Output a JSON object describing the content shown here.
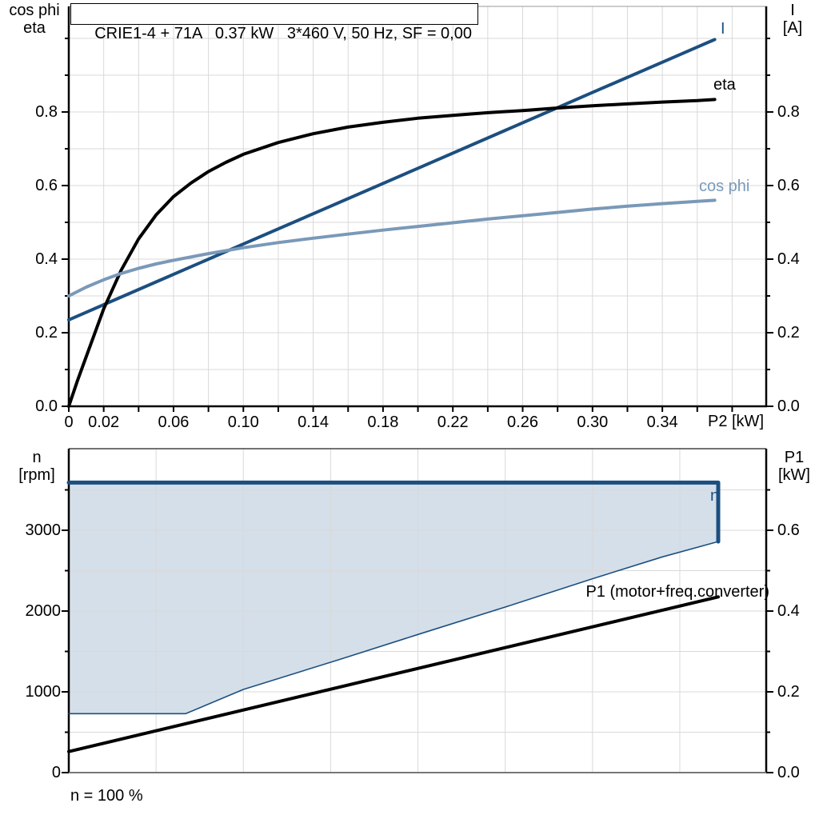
{
  "colors": {
    "dark_blue": "#1c4f80",
    "light_blue": "#7a99b8",
    "black": "#000000",
    "fill_blue": "#d4dfe9",
    "grid": "#d9d9d9"
  },
  "chart_data": [
    {
      "type": "line",
      "title": "CRIE1-4 + 71A   0.37 kW   3*460 V, 50 Hz, SF = 0,00",
      "xlabel": "P2 [kW]",
      "ylabel_left": [
        "cos phi",
        "eta"
      ],
      "ylabel_right": [
        "I",
        "[A]"
      ],
      "xlim": [
        0,
        0.3995
      ],
      "ylim": [
        0,
        1.087
      ],
      "grid": true,
      "x_minor_step": 0.02,
      "y_minor_step": 0.1,
      "x_tick_labels": [
        {
          "v": 0,
          "t": "0"
        },
        {
          "v": 0.02,
          "t": "0.02"
        },
        {
          "v": 0.06,
          "t": "0.06"
        },
        {
          "v": 0.1,
          "t": "0.10"
        },
        {
          "v": 0.14,
          "t": "0.14"
        },
        {
          "v": 0.18,
          "t": "0.18"
        },
        {
          "v": 0.22,
          "t": "0.22"
        },
        {
          "v": 0.26,
          "t": "0.26"
        },
        {
          "v": 0.3,
          "t": "0.30"
        },
        {
          "v": 0.34,
          "t": "0.34"
        }
      ],
      "y_tick_labels": [
        {
          "v": 0,
          "t": "0.0"
        },
        {
          "v": 0.2,
          "t": "0.2"
        },
        {
          "v": 0.4,
          "t": "0.4"
        },
        {
          "v": 0.6,
          "t": "0.6"
        },
        {
          "v": 0.8,
          "t": "0.8"
        }
      ],
      "series": [
        {
          "name": "I",
          "label": "I",
          "color": "dark_blue",
          "width": 4,
          "points": [
            [
              0,
              0.235
            ],
            [
              0.05,
              0.338
            ],
            [
              0.1,
              0.441
            ],
            [
              0.15,
              0.544
            ],
            [
              0.2,
              0.647
            ],
            [
              0.25,
              0.75
            ],
            [
              0.3,
              0.853
            ],
            [
              0.35,
              0.956
            ],
            [
              0.37,
              0.997
            ]
          ]
        },
        {
          "name": "eta",
          "label": "eta",
          "color": "black",
          "width": 4,
          "points": [
            [
              0,
              0
            ],
            [
              0.005,
              0.07
            ],
            [
              0.01,
              0.135
            ],
            [
              0.02,
              0.265
            ],
            [
              0.03,
              0.37
            ],
            [
              0.04,
              0.455
            ],
            [
              0.05,
              0.52
            ],
            [
              0.06,
              0.57
            ],
            [
              0.07,
              0.607
            ],
            [
              0.08,
              0.638
            ],
            [
              0.09,
              0.663
            ],
            [
              0.1,
              0.685
            ],
            [
              0.12,
              0.717
            ],
            [
              0.14,
              0.741
            ],
            [
              0.16,
              0.759
            ],
            [
              0.18,
              0.772
            ],
            [
              0.2,
              0.783
            ],
            [
              0.22,
              0.791
            ],
            [
              0.24,
              0.798
            ],
            [
              0.26,
              0.804
            ],
            [
              0.28,
              0.811
            ],
            [
              0.3,
              0.817
            ],
            [
              0.32,
              0.822
            ],
            [
              0.34,
              0.827
            ],
            [
              0.36,
              0.831
            ],
            [
              0.37,
              0.834
            ]
          ]
        },
        {
          "name": "cos_phi",
          "label": "cos phi",
          "color": "light_blue",
          "width": 4,
          "points": [
            [
              0,
              0.3
            ],
            [
              0.01,
              0.324
            ],
            [
              0.02,
              0.344
            ],
            [
              0.03,
              0.361
            ],
            [
              0.04,
              0.375
            ],
            [
              0.05,
              0.387
            ],
            [
              0.06,
              0.397
            ],
            [
              0.08,
              0.415
            ],
            [
              0.1,
              0.431
            ],
            [
              0.12,
              0.445
            ],
            [
              0.14,
              0.457
            ],
            [
              0.16,
              0.468
            ],
            [
              0.18,
              0.479
            ],
            [
              0.2,
              0.489
            ],
            [
              0.22,
              0.499
            ],
            [
              0.24,
              0.509
            ],
            [
              0.26,
              0.518
            ],
            [
              0.28,
              0.527
            ],
            [
              0.3,
              0.536
            ],
            [
              0.32,
              0.544
            ],
            [
              0.34,
              0.551
            ],
            [
              0.36,
              0.557
            ],
            [
              0.37,
              0.56
            ]
          ]
        }
      ]
    },
    {
      "type": "area",
      "title": "",
      "xlabel": "",
      "ylabel_left": [
        "n",
        "[rpm]"
      ],
      "ylabel_right": [
        "P1",
        "[kW]"
      ],
      "footnote": "n = 100 %",
      "xlim": [
        0,
        0.3995
      ],
      "ylim_left": [
        0,
        4010
      ],
      "ylim_right": [
        0,
        0.802
      ],
      "grid": true,
      "x_grid_step": 0.05,
      "y_grid_step_right": 0.1,
      "y_left_tick_labels": [
        {
          "v": 0,
          "t": "0"
        },
        {
          "v": 1000,
          "t": "1000"
        },
        {
          "v": 2000,
          "t": "2000"
        },
        {
          "v": 3000,
          "t": "3000"
        }
      ],
      "y_left_minor_ticks": [
        500,
        1500,
        2500,
        3500
      ],
      "y_right_tick_labels": [
        {
          "v": 0,
          "t": "0.0"
        },
        {
          "v": 0.2,
          "t": "0.2"
        },
        {
          "v": 0.4,
          "t": "0.4"
        },
        {
          "v": 0.6,
          "t": "0.6"
        }
      ],
      "y_right_minor_ticks": [
        0.1,
        0.3,
        0.5,
        0.7
      ],
      "series": [
        {
          "name": "speed_envelope",
          "label": "n",
          "type": "area",
          "axis": "left",
          "color": "dark_blue",
          "fill": "fill_blue",
          "points": [
            [
              0,
              3590
            ],
            [
              0.372,
              3590
            ],
            [
              0.372,
              2860
            ],
            [
              0.34,
              2670
            ],
            [
              0.3,
              2400
            ],
            [
              0.25,
              2050
            ],
            [
              0.2,
              1710
            ],
            [
              0.155,
              1400
            ],
            [
              0.1,
              1030
            ],
            [
              0.067,
              730
            ],
            [
              0,
              730
            ]
          ]
        },
        {
          "name": "P1",
          "label": "P1 (motor+freq.converter)",
          "type": "line",
          "axis": "right",
          "color": "black",
          "width": 4,
          "points": [
            [
              0,
              0.052
            ],
            [
              0.372,
              0.435
            ]
          ]
        }
      ]
    }
  ]
}
